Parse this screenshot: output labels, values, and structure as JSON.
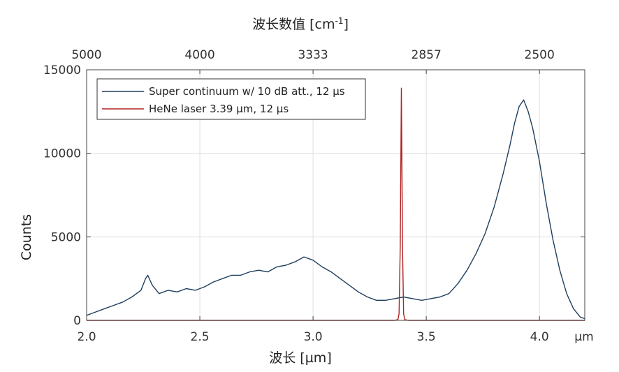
{
  "chart_data": {
    "type": "line",
    "title": "",
    "xlabel": "波长 [µm]",
    "xunit": "µm",
    "x2label_main": "波长数值 [cm",
    "x2label_sup": "-1",
    "x2label_end": "]",
    "ylabel": "Counts",
    "xlim": [
      2.0,
      4.2
    ],
    "ylim": [
      0,
      15000
    ],
    "x_ticks": [
      2.0,
      2.5,
      3.0,
      3.5,
      4.0
    ],
    "x_tick_labels": [
      "2.0",
      "2.5",
      "3.0",
      "3.5",
      "4.0"
    ],
    "y_ticks": [
      0,
      5000,
      10000,
      15000
    ],
    "y_tick_labels": [
      "0",
      "5000",
      "10000",
      "15000"
    ],
    "x2_tick_labels": [
      "5000",
      "4000",
      "3333",
      "2857",
      "2500"
    ],
    "x2_tick_positions": [
      2.0,
      2.5,
      3.0,
      3.5,
      4.0
    ],
    "grid": true,
    "legend_position": "top-left",
    "series": [
      {
        "name": "Super continuum w/ 10 dB att., 12 µs",
        "color": "#1f3f5f",
        "x": [
          2.0,
          2.04,
          2.08,
          2.12,
          2.16,
          2.2,
          2.24,
          2.26,
          2.27,
          2.29,
          2.32,
          2.36,
          2.4,
          2.44,
          2.48,
          2.52,
          2.56,
          2.6,
          2.64,
          2.68,
          2.72,
          2.76,
          2.8,
          2.84,
          2.88,
          2.92,
          2.96,
          3.0,
          3.04,
          3.08,
          3.12,
          3.16,
          3.2,
          3.24,
          3.28,
          3.32,
          3.36,
          3.4,
          3.44,
          3.48,
          3.52,
          3.56,
          3.6,
          3.64,
          3.68,
          3.72,
          3.76,
          3.8,
          3.84,
          3.87,
          3.89,
          3.91,
          3.93,
          3.95,
          3.97,
          4.0,
          4.03,
          4.06,
          4.09,
          4.12,
          4.15,
          4.18,
          4.2
        ],
        "y": [
          300,
          500,
          700,
          900,
          1100,
          1400,
          1800,
          2500,
          2700,
          2100,
          1600,
          1800,
          1700,
          1900,
          1800,
          2000,
          2300,
          2500,
          2700,
          2700,
          2900,
          3000,
          2900,
          3200,
          3300,
          3500,
          3800,
          3600,
          3200,
          2900,
          2500,
          2100,
          1700,
          1400,
          1200,
          1200,
          1300,
          1400,
          1300,
          1200,
          1300,
          1400,
          1600,
          2200,
          3000,
          4000,
          5200,
          6800,
          8800,
          10500,
          11800,
          12800,
          13200,
          12500,
          11500,
          9500,
          7000,
          4800,
          3000,
          1600,
          700,
          200,
          100
        ]
      },
      {
        "name": "HeNe laser 3.39 µm, 12 µs",
        "color": "#b22222",
        "x": [
          2.0,
          3.36,
          3.375,
          3.38,
          3.385,
          3.39,
          3.395,
          3.4,
          3.405,
          3.42,
          4.2
        ],
        "y": [
          0,
          0,
          50,
          400,
          4500,
          13900,
          4500,
          400,
          50,
          0,
          0
        ]
      }
    ]
  }
}
